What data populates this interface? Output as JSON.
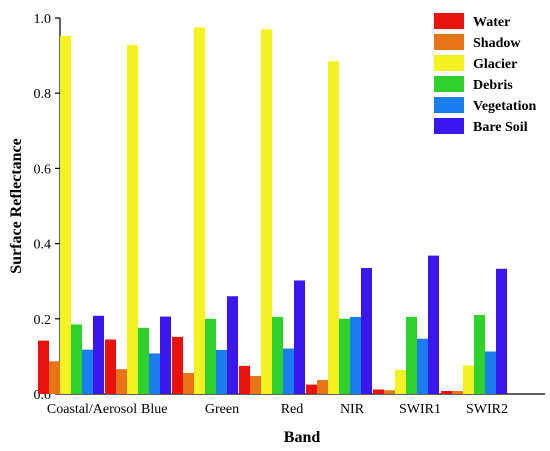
{
  "chart_data": {
    "type": "bar",
    "title": "",
    "xlabel": "Band",
    "ylabel": "Surface Reflectance",
    "categories": [
      "Coastal/Aerosol",
      "Blue",
      "Green",
      "Red",
      "NIR",
      "SWIR1",
      "SWIR2"
    ],
    "ylim": [
      0,
      1.0
    ],
    "yticks": [
      "0.0",
      "0.2",
      "0.4",
      "0.6",
      "0.8",
      "1.0"
    ],
    "grid": false,
    "legend_position": "top-right",
    "series": [
      {
        "name": "Water",
        "color": "#e8140c",
        "values": [
          0.142,
          0.145,
          0.152,
          0.075,
          0.025,
          0.012,
          0.008
        ]
      },
      {
        "name": "Shadow",
        "color": "#e8741a",
        "values": [
          0.087,
          0.066,
          0.056,
          0.048,
          0.037,
          0.01,
          0.008
        ]
      },
      {
        "name": "Glacier",
        "color": "#f5f222",
        "values": [
          0.952,
          0.928,
          0.975,
          0.97,
          0.885,
          0.064,
          0.076
        ]
      },
      {
        "name": "Debris",
        "color": "#2ed22a",
        "values": [
          0.185,
          0.176,
          0.2,
          0.205,
          0.2,
          0.205,
          0.21
        ]
      },
      {
        "name": "Vegetation",
        "color": "#1a7ef0",
        "values": [
          0.118,
          0.108,
          0.117,
          0.121,
          0.205,
          0.147,
          0.113
        ]
      },
      {
        "name": "Bare Soil",
        "color": "#3a17ee",
        "values": [
          0.208,
          0.206,
          0.26,
          0.302,
          0.335,
          0.368,
          0.333
        ]
      }
    ]
  }
}
